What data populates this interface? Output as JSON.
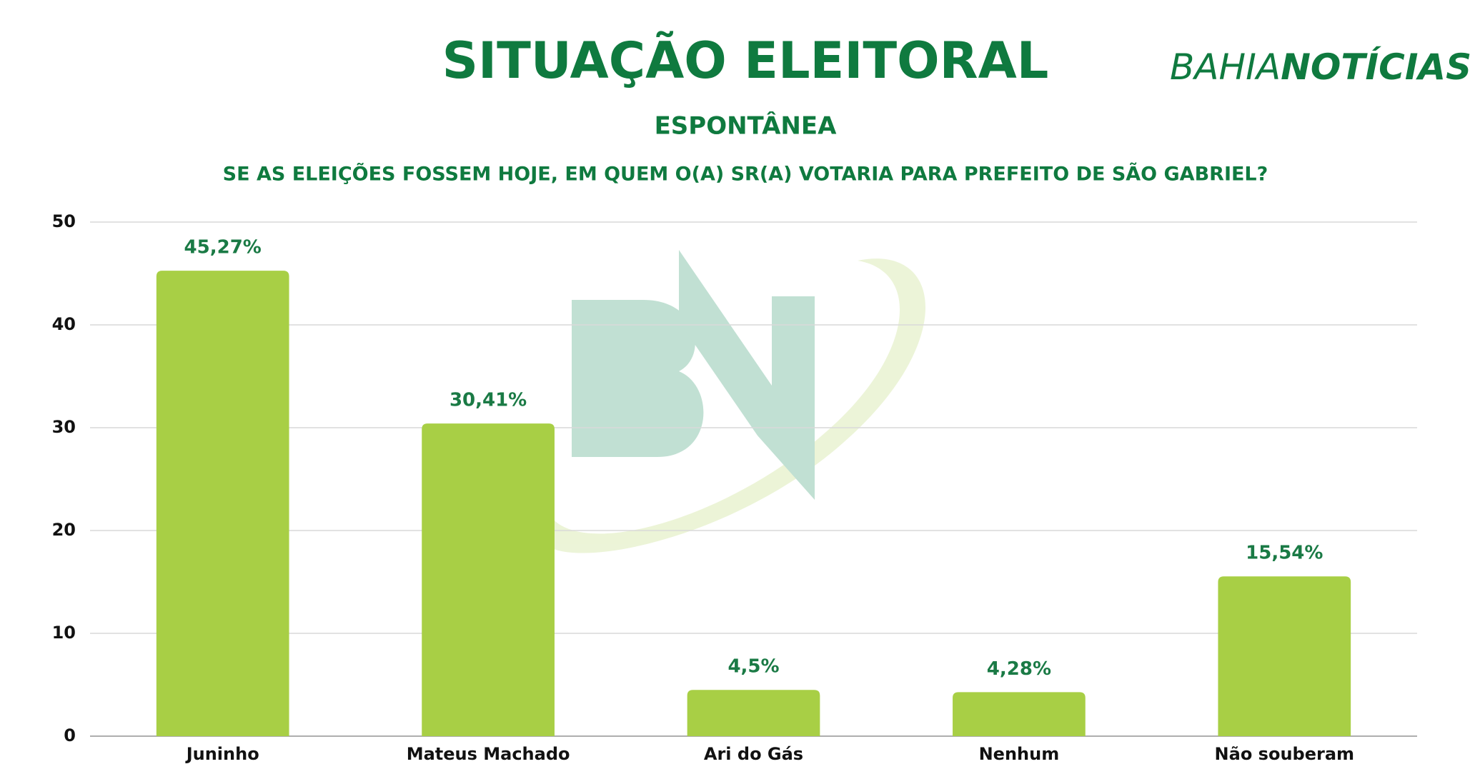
{
  "chart_data": {
    "type": "bar",
    "title": "SITUAÇÃO ELEITORAL",
    "subtitle": "ESPONTÂNEA",
    "question": "SE AS ELEIÇÕES FOSSEM HOJE, EM QUEM O(A) SR(A) VOTARIA PARA PREFEITO DE SÃO GABRIEL?",
    "logo": {
      "light": "BAHIA",
      "bold": "NOTÍCIAS"
    },
    "categories": [
      "Juninho",
      "Mateus Machado",
      "Ari do Gás",
      "Nenhum",
      "Não souberam"
    ],
    "values": [
      45.27,
      30.41,
      4.5,
      4.28,
      15.54
    ],
    "value_labels": [
      "45,27%",
      "30,41%",
      "4,5%",
      "4,28%",
      "15,54%"
    ],
    "color": "#a8cf45",
    "ylim": [
      0,
      50
    ],
    "yticks": [
      0,
      10,
      20,
      30,
      40,
      50
    ],
    "grid": true
  }
}
